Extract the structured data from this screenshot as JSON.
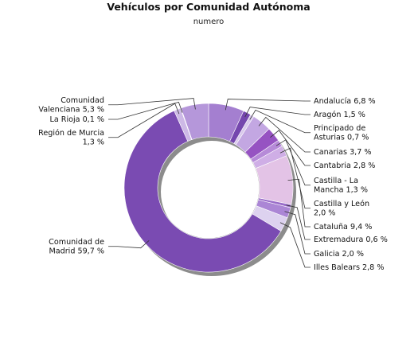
{
  "chart_data": {
    "type": "pie",
    "style": "donut",
    "title": "Vehículos por Comunidad Autónoma",
    "subtitle": "numero",
    "slices": [
      {
        "name": "Andalucía",
        "value": 6.8,
        "label": [
          "Andalucía 6,8 %"
        ],
        "color": "#a47fd0"
      },
      {
        "name": "Aragón",
        "value": 1.5,
        "label": [
          "Aragón 1,5 %"
        ],
        "color": "#7547ae"
      },
      {
        "name": "Principado de Asturias",
        "value": 0.7,
        "label": [
          "Principado de",
          "Asturias 0,7 %"
        ],
        "color": "#d9c9ec"
      },
      {
        "name": "Canarias",
        "value": 3.7,
        "label": [
          "Canarias 3,7 %"
        ],
        "color": "#c3a7e2"
      },
      {
        "name": "Cantabria",
        "value": 2.8,
        "label": [
          "Cantabria 2,8 %"
        ],
        "color": "#9653c2"
      },
      {
        "name": "Castilla - La Mancha",
        "value": 1.3,
        "label": [
          "Castilla - La",
          "Mancha 1,3 %"
        ],
        "color": "#b68ad8"
      },
      {
        "name": "Castilla y León",
        "value": 2.0,
        "label": [
          "Castilla y León",
          "2,0 %"
        ],
        "color": "#cfaee6"
      },
      {
        "name": "Cataluña",
        "value": 9.4,
        "label": [
          "Cataluña 9,4 %"
        ],
        "color": "#e3c3e6"
      },
      {
        "name": "Extremadura",
        "value": 0.6,
        "label": [
          "Extremadura 0,6 %"
        ],
        "color": "#9a6dc9"
      },
      {
        "name": "Galicia",
        "value": 2.0,
        "label": [
          "Galicia 2,0 %"
        ],
        "color": "#ab86d5"
      },
      {
        "name": "Illes Balears",
        "value": 2.8,
        "label": [
          "Illes Balears 2,8 %"
        ],
        "color": "#ddd2ef"
      },
      {
        "name": "Comunidad de Madrid",
        "value": 59.7,
        "label": [
          "Comunidad de",
          "Madrid 59,7 %"
        ],
        "color": "#7a4bb2"
      },
      {
        "name": "Región de Murcia",
        "value": 1.3,
        "label": [
          "Región de Murcia",
          "1,3 %"
        ],
        "color": "#cdb9e6"
      },
      {
        "name": "La Rioja",
        "value": 0.1,
        "label": [
          "La Rioja 0,1 %"
        ],
        "color": "#8d62c0"
      },
      {
        "name": "Comunidad Valenciana",
        "value": 5.3,
        "label": [
          "Comunidad",
          "Valenciana 5,3 %"
        ],
        "color": "#b597da"
      }
    ]
  }
}
